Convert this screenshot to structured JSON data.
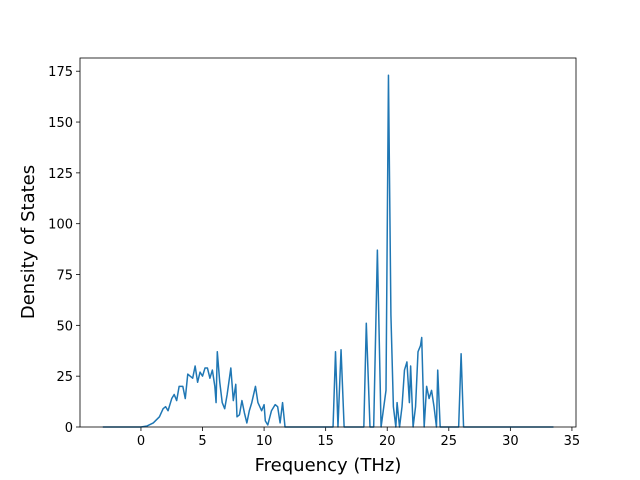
{
  "chart_data": {
    "type": "line",
    "xlabel": "Frequency (THz)",
    "ylabel": "Density of States",
    "x": [
      -3.1,
      0,
      0.5,
      1,
      1.5,
      1.8,
      2.0,
      2.2,
      2.5,
      2.7,
      2.9,
      3.1,
      3.4,
      3.6,
      3.8,
      4.0,
      4.2,
      4.4,
      4.6,
      4.8,
      5.0,
      5.2,
      5.4,
      5.6,
      5.8,
      6.0,
      6.1,
      6.2,
      6.4,
      6.6,
      6.8,
      7.0,
      7.3,
      7.5,
      7.7,
      7.8,
      8.0,
      8.2,
      8.4,
      8.6,
      8.8,
      9.0,
      9.3,
      9.5,
      9.8,
      10.0,
      10.1,
      10.3,
      10.6,
      10.9,
      11.1,
      11.3,
      11.5,
      11.7,
      15.6,
      15.8,
      16.0,
      16.25,
      16.5,
      18.1,
      18.3,
      18.6,
      18.9,
      19.2,
      19.5,
      19.9,
      20.1,
      20.3,
      20.5,
      20.7,
      20.8,
      21.0,
      21.2,
      21.4,
      21.6,
      21.8,
      21.9,
      22.1,
      22.3,
      22.5,
      22.7,
      22.8,
      23.0,
      23.2,
      23.4,
      23.6,
      23.8,
      24.0,
      24.1,
      24.3,
      25.8,
      26.0,
      26.2,
      33.5
    ],
    "values": [
      0,
      0,
      0.5,
      2,
      5,
      9,
      10,
      8,
      14,
      16,
      13,
      20,
      20,
      14,
      26,
      25,
      24,
      30,
      22,
      27,
      25,
      29,
      29,
      24,
      28,
      20,
      12,
      37,
      22,
      12,
      9,
      16,
      29,
      13,
      21,
      5,
      6,
      13,
      7,
      2,
      8,
      12,
      20,
      12,
      8,
      11,
      3,
      1,
      8,
      11,
      10,
      2,
      12,
      0,
      0,
      37,
      0,
      38,
      0,
      0,
      51,
      0,
      0,
      87,
      0,
      18,
      173,
      55,
      10,
      0,
      12,
      0,
      10,
      28,
      32,
      12,
      30,
      0,
      10,
      37,
      40,
      44,
      0,
      20,
      14,
      18,
      10,
      0,
      28,
      0,
      0,
      36,
      0,
      0
    ],
    "color": "#1f77b4",
    "xlim": [
      -4.95,
      35.33
    ],
    "xticks": [
      0,
      5,
      10,
      15,
      20,
      25,
      30,
      35
    ],
    "ylim": [
      0,
      181.5
    ],
    "yticks": [
      0,
      25,
      50,
      75,
      100,
      125,
      150,
      175
    ]
  }
}
